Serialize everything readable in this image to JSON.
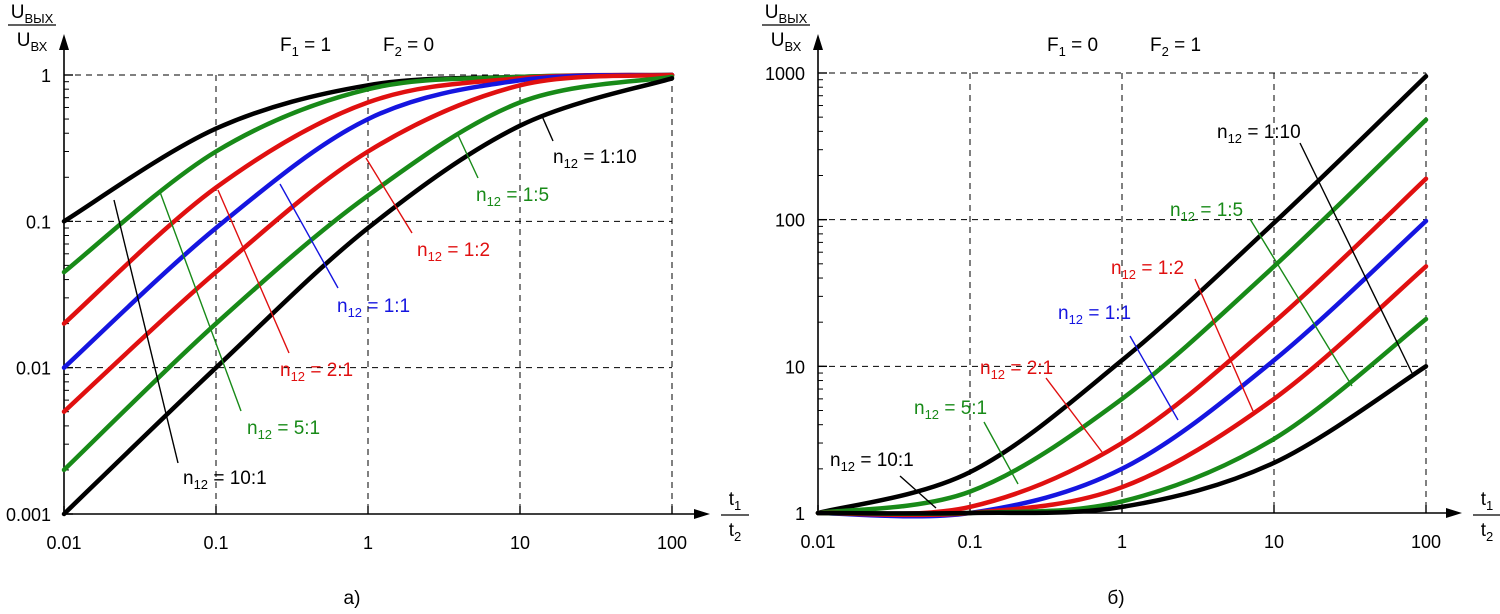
{
  "colors": {
    "n10": "#000000",
    "n5": "#188a18",
    "n2": "#e01010",
    "n1": "#1515e0"
  },
  "chart_data": [
    {
      "type": "line",
      "panel_label": "а)",
      "scale": "log-log",
      "xlim": [
        0.01,
        100
      ],
      "ylim": [
        0.001,
        1
      ],
      "x_ticks": [
        "0.01",
        "0.1",
        "1",
        "10",
        "100"
      ],
      "y_ticks": [
        "0.001",
        "0.01",
        "0.1",
        "1"
      ],
      "ylabel_num": "U",
      "ylabel_num_sub": "ВЫХ",
      "ylabel_den": "U",
      "ylabel_den_sub": "ВХ",
      "xlabel_num": "t",
      "xlabel_num_sub": "1",
      "xlabel_den": "t",
      "xlabel_den_sub": "2",
      "condition1": {
        "name": "F",
        "sub": "1",
        "value": " = 1"
      },
      "condition2": {
        "name": "F",
        "sub": "2",
        "value": " = 0"
      },
      "grid": true,
      "series": [
        {
          "name": "n12 = 10:1",
          "label_name": "n",
          "label_sub": "12",
          "label_value": " = 10:1",
          "color_key": "n10",
          "x": [
            0.01,
            0.1,
            1,
            10,
            100
          ],
          "y": [
            0.1,
            0.43,
            0.85,
            0.97,
            1.0
          ]
        },
        {
          "name": "n12 = 5:1",
          "label_name": "n",
          "label_sub": "12",
          "label_value": " = 5:1",
          "color_key": "n5",
          "x": [
            0.01,
            0.1,
            1,
            10,
            100
          ],
          "y": [
            0.045,
            0.3,
            0.8,
            0.97,
            1.0
          ]
        },
        {
          "name": "n12 = 2:1",
          "label_name": "n",
          "label_sub": "12",
          "label_value": " = 2:1",
          "color_key": "n2",
          "x": [
            0.01,
            0.1,
            1,
            10,
            100
          ],
          "y": [
            0.02,
            0.17,
            0.65,
            0.95,
            1.0
          ]
        },
        {
          "name": "n12 = 1:1",
          "label_name": "n",
          "label_sub": "12",
          "label_value": " = 1:1",
          "color_key": "n1",
          "x": [
            0.01,
            0.1,
            1,
            10,
            100
          ],
          "y": [
            0.01,
            0.09,
            0.5,
            0.92,
            1.0
          ]
        },
        {
          "name": "n12 = 1:2",
          "label_name": "n",
          "label_sub": "12",
          "label_value": " = 1:2",
          "color_key": "n2",
          "x": [
            0.01,
            0.1,
            1,
            10,
            100
          ],
          "y": [
            0.005,
            0.045,
            0.3,
            0.85,
            1.0
          ]
        },
        {
          "name": "n12 = 1:5",
          "label_name": "n",
          "label_sub": "12",
          "label_value": " = 1:5",
          "color_key": "n5",
          "x": [
            0.01,
            0.1,
            1,
            10,
            100
          ],
          "y": [
            0.002,
            0.02,
            0.15,
            0.65,
            0.97
          ]
        },
        {
          "name": "n12 = 1:10",
          "label_name": "n",
          "label_sub": "12",
          "label_value": " = 1:10",
          "color_key": "n10",
          "x": [
            0.01,
            0.1,
            1,
            10,
            100
          ],
          "y": [
            0.001,
            0.01,
            0.09,
            0.45,
            0.95
          ]
        }
      ]
    },
    {
      "type": "line",
      "panel_label": "б)",
      "scale": "log-log",
      "xlim": [
        0.01,
        100
      ],
      "ylim": [
        1,
        1000
      ],
      "x_ticks": [
        "0.01",
        "0.1",
        "1",
        "10",
        "100"
      ],
      "y_ticks": [
        "1",
        "10",
        "100",
        "1000"
      ],
      "ylabel_num": "U",
      "ylabel_num_sub": "ВЫХ",
      "ylabel_den": "U",
      "ylabel_den_sub": "ВХ",
      "xlabel_num": "t",
      "xlabel_num_sub": "1",
      "xlabel_den": "t",
      "xlabel_den_sub": "2",
      "condition1": {
        "name": "F",
        "sub": "1",
        "value": " = 0"
      },
      "condition2": {
        "name": "F",
        "sub": "2",
        "value": " = 1"
      },
      "grid": true,
      "series": [
        {
          "name": "n12 = 1:10",
          "label_name": "n",
          "label_sub": "12",
          "label_value": " = 1:10",
          "color_key": "n10",
          "x": [
            0.01,
            0.1,
            1,
            10,
            100
          ],
          "y": [
            1.0,
            1.9,
            11,
            95,
            950
          ]
        },
        {
          "name": "n12 = 1:5",
          "label_name": "n",
          "label_sub": "12",
          "label_value": " = 1:5",
          "color_key": "n5",
          "x": [
            0.01,
            0.1,
            1,
            10,
            100
          ],
          "y": [
            1.0,
            1.4,
            6,
            48,
            480
          ]
        },
        {
          "name": "n12 = 1:2",
          "label_name": "n",
          "label_sub": "12",
          "label_value": " = 1:2",
          "color_key": "n2",
          "x": [
            0.01,
            0.1,
            1,
            10,
            100
          ],
          "y": [
            1.0,
            1.1,
            3,
            20,
            190
          ]
        },
        {
          "name": "n12 = 1:1",
          "label_name": "n",
          "label_sub": "12",
          "label_value": " = 1:1",
          "color_key": "n1",
          "x": [
            0.01,
            0.1,
            1,
            10,
            100
          ],
          "y": [
            1.0,
            1.0,
            2,
            11,
            98
          ]
        },
        {
          "name": "n12 = 2:1",
          "label_name": "n",
          "label_sub": "12",
          "label_value": " = 2:1",
          "color_key": "n2",
          "x": [
            0.01,
            0.1,
            1,
            10,
            100
          ],
          "y": [
            1.0,
            1.0,
            1.5,
            6,
            48
          ]
        },
        {
          "name": "n12 = 5:1",
          "label_name": "n",
          "label_sub": "12",
          "label_value": " = 5:1",
          "color_key": "n5",
          "x": [
            0.01,
            0.1,
            1,
            10,
            100
          ],
          "y": [
            1.0,
            1.0,
            1.2,
            3.2,
            21
          ]
        },
        {
          "name": "n12 = 10:1",
          "label_name": "n",
          "label_sub": "12",
          "label_value": " = 10:1",
          "color_key": "n10",
          "x": [
            0.01,
            0.1,
            1,
            10,
            100
          ],
          "y": [
            1.0,
            1.0,
            1.1,
            2.2,
            10
          ]
        }
      ]
    }
  ]
}
